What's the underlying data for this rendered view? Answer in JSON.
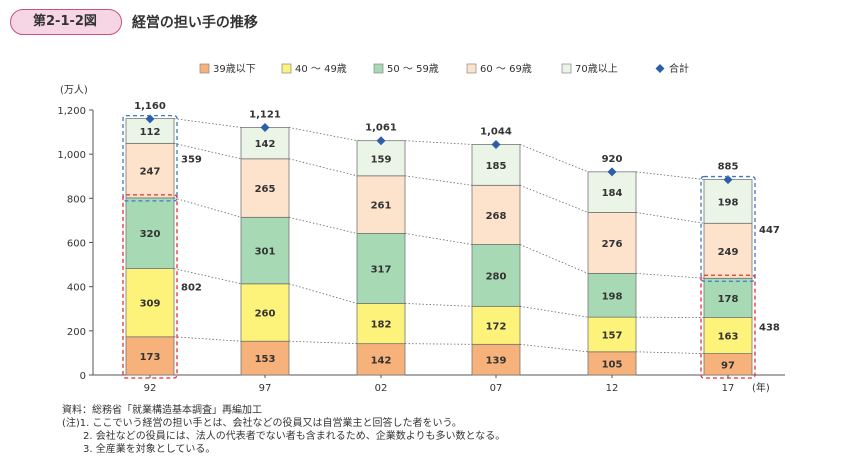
{
  "figure": {
    "number": "第2-1-2図",
    "title": "経営の担い手の推移"
  },
  "chart_data": {
    "type": "bar",
    "stacked": true,
    "categories": [
      "92",
      "97",
      "02",
      "07",
      "12",
      "17"
    ],
    "series": [
      {
        "name": "39歳以下",
        "color": "#f6b27a",
        "values": [
          173,
          153,
          142,
          139,
          105,
          97
        ]
      },
      {
        "name": "40 〜 49歳",
        "color": "#fdf27a",
        "values": [
          309,
          260,
          182,
          172,
          157,
          163
        ]
      },
      {
        "name": "50 〜 59歳",
        "color": "#a7d9b4",
        "values": [
          320,
          301,
          317,
          280,
          198,
          178
        ]
      },
      {
        "name": "60 〜 69歳",
        "color": "#fde2cc",
        "values": [
          247,
          265,
          261,
          268,
          276,
          249
        ]
      },
      {
        "name": "70歳以上",
        "color": "#eaf5e8",
        "values": [
          112,
          142,
          159,
          185,
          184,
          198
        ]
      }
    ],
    "total": {
      "name": "合計",
      "color": "#2d5fa8",
      "values": [
        1160,
        1121,
        1061,
        1044,
        920,
        885
      ]
    },
    "total_labels": [
      "1,160",
      "1,121",
      "1,061",
      "1,044",
      "920",
      "885"
    ],
    "ylabel": "(万人)",
    "xlabel": "(年)",
    "ylim": [
      0,
      1200
    ],
    "yticks": [
      0,
      200,
      400,
      600,
      800,
      1000,
      1200
    ],
    "ytick_labels": [
      "0",
      "200",
      "400",
      "600",
      "800",
      "1,000",
      "1,200"
    ],
    "legend_position": "top",
    "bracket_annotations": [
      {
        "category": "92",
        "group": "upper",
        "value": 359,
        "border": "#3a7cc4"
      },
      {
        "category": "92",
        "group": "lower",
        "value": 802,
        "border": "#e33030"
      },
      {
        "category": "17",
        "group": "upper",
        "value": 447,
        "border": "#3a7cc4"
      },
      {
        "category": "17",
        "group": "lower",
        "value": 438,
        "border": "#e33030"
      }
    ]
  },
  "notes": {
    "source": "資料：総務省「就業構造基本調査」再編加工",
    "note1": "(注)1. ここでいう経営の担い手とは、会社などの役員又は自営業主と回答した者をいう。",
    "note2": "2. 会社などの役員には、法人の代表者でない者も含まれるため、企業数よりも多い数となる。",
    "note3": "3. 全産業を対象としている。"
  }
}
